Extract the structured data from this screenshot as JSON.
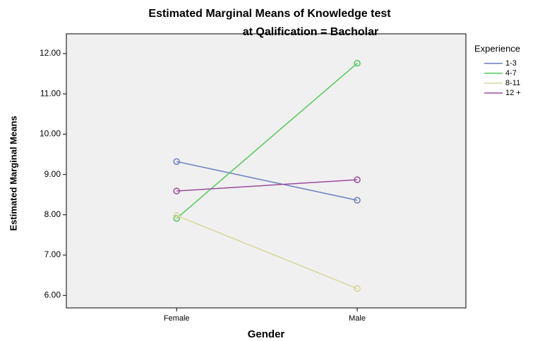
{
  "chart_data": {
    "type": "line",
    "title": "Estimated Marginal Means of Knowledge test",
    "subtitle": "at Qalification = Bacholar",
    "x_label": "Gender",
    "y_label": "Estimated Marginal Means",
    "legend_title": "Experience",
    "legend": "right",
    "categories": [
      "Female",
      "Male"
    ],
    "series": [
      {
        "name": "1-3",
        "color": "#6a7fc1",
        "values": [
          9.32,
          8.36
        ]
      },
      {
        "name": "4-7",
        "color": "#4fca5b",
        "values": [
          7.91,
          11.76
        ]
      },
      {
        "name": "8-11",
        "color": "#d8d59c",
        "values": [
          7.98,
          6.17
        ]
      },
      {
        "name": "12 +",
        "color": "#9b4b9b",
        "values": [
          8.59,
          8.87
        ]
      }
    ],
    "ylim": [
      5.69,
      12.49
    ],
    "yticks": [
      {
        "value": 6,
        "label": "6.00"
      },
      {
        "value": 7,
        "label": "7.00"
      },
      {
        "value": 8,
        "label": "8.00"
      },
      {
        "value": 9,
        "label": "9.00"
      },
      {
        "value": 10,
        "label": "10.00"
      },
      {
        "value": 11,
        "label": "11.00"
      },
      {
        "value": 12,
        "label": "12.00"
      }
    ]
  }
}
